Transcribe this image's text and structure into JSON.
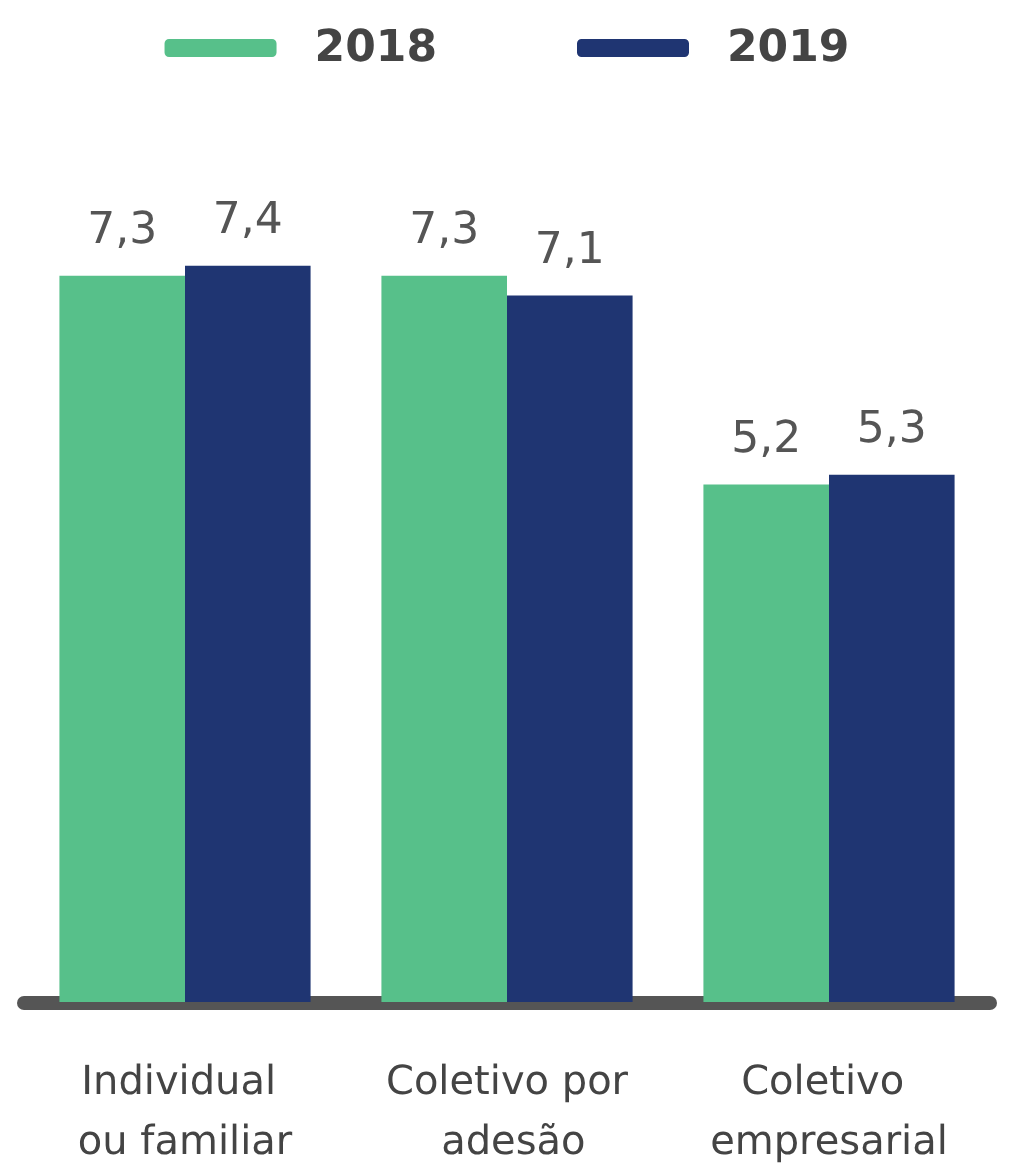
{
  "chart_data": {
    "type": "bar",
    "categories": [
      "Individual ou familiar",
      "Coletivo por adesão",
      "Coletivo empresarial"
    ],
    "series": [
      {
        "name": "2018",
        "color": "#57c08a",
        "values": [
          7.3,
          7.3,
          5.2
        ],
        "value_labels": [
          "7,3",
          "7,3",
          "5,2"
        ]
      },
      {
        "name": "2019",
        "color": "#1f3572",
        "values": [
          7.4,
          7.1,
          5.3
        ],
        "value_labels": [
          "7,4",
          "7,1",
          "5,3"
        ]
      }
    ],
    "legend": "top",
    "tick_labels": "x"
  }
}
